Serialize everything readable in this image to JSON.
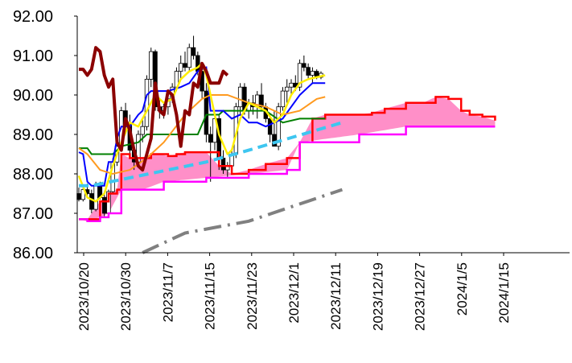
{
  "chart_data": {
    "type": "line",
    "title": "",
    "xlabel": "",
    "ylabel": "",
    "ylim": [
      86.0,
      92.0
    ],
    "y_ticks": [
      "86.00",
      "87.00",
      "88.00",
      "89.00",
      "90.00",
      "91.00",
      "92.00"
    ],
    "x_tick_labels": [
      "2023/10/20",
      "2023/10/30",
      "2023/11/7",
      "2023/11/15",
      "2023/11/23",
      "2023/12/1",
      "2023/12/11",
      "2023/12/19",
      "2023/12/27",
      "2024/1/5",
      "2024/1/15"
    ],
    "grid": false,
    "legend": "none",
    "colors": {
      "candle_up": "#ffffff",
      "candle_down": "#000000",
      "cloud_fill": "#ff8fc8",
      "span_a": "#ff0000",
      "span_b": "#ff00ff",
      "lagging": "#8b0000",
      "ma_short": "#ffee00",
      "ma_mid": "#ff9a1f",
      "tenkan": "#0000ff",
      "kijun": "#008000",
      "trend_upper": "#3ec6f0",
      "trend_lower": "#808080"
    },
    "candles": [
      [
        87.5,
        87.65,
        87.3,
        87.35
      ],
      [
        87.35,
        87.7,
        87.3,
        87.6
      ],
      [
        87.6,
        87.75,
        87.4,
        87.5
      ],
      [
        87.5,
        87.6,
        87.0,
        87.1
      ],
      [
        87.1,
        87.8,
        87.05,
        87.7
      ],
      [
        87.7,
        87.8,
        87.35,
        87.4
      ],
      [
        87.4,
        87.5,
        86.9,
        87.0
      ],
      [
        87.0,
        87.6,
        86.95,
        87.55
      ],
      [
        87.55,
        88.4,
        87.5,
        88.3
      ],
      [
        88.3,
        88.8,
        88.2,
        88.7
      ],
      [
        88.7,
        89.7,
        88.6,
        89.6
      ],
      [
        89.6,
        89.8,
        89.2,
        89.3
      ],
      [
        89.3,
        89.5,
        88.5,
        88.6
      ],
      [
        88.6,
        88.8,
        88.1,
        88.3
      ],
      [
        88.3,
        89.1,
        88.2,
        89.0
      ],
      [
        89.0,
        89.4,
        88.8,
        89.2
      ],
      [
        89.2,
        90.5,
        89.1,
        90.4
      ],
      [
        90.4,
        91.2,
        90.2,
        91.1
      ],
      [
        91.1,
        91.15,
        89.6,
        89.7
      ],
      [
        89.7,
        89.9,
        89.4,
        89.6
      ],
      [
        89.6,
        89.8,
        89.4,
        89.7
      ],
      [
        89.7,
        90.0,
        89.5,
        89.9
      ],
      [
        89.9,
        90.3,
        89.8,
        90.2
      ],
      [
        90.2,
        90.7,
        90.1,
        90.6
      ],
      [
        90.6,
        91.0,
        90.4,
        90.8
      ],
      [
        90.8,
        91.1,
        90.6,
        90.7
      ],
      [
        90.7,
        91.3,
        90.6,
        91.2
      ],
      [
        91.2,
        91.5,
        90.9,
        91.0
      ],
      [
        91.0,
        91.1,
        90.5,
        90.6
      ],
      [
        90.6,
        90.8,
        89.9,
        90.1
      ],
      [
        90.1,
        90.3,
        88.8,
        89.0
      ],
      [
        89.0,
        89.2,
        87.8,
        88.8
      ],
      [
        88.8,
        89.5,
        88.6,
        89.4
      ],
      [
        89.4,
        89.5,
        88.1,
        88.4
      ],
      [
        88.4,
        88.6,
        88.0,
        88.1
      ],
      [
        88.1,
        88.3,
        87.9,
        88.2
      ],
      [
        88.2,
        88.6,
        88.1,
        88.5
      ],
      [
        88.5,
        89.8,
        88.4,
        89.7
      ],
      [
        89.7,
        90.3,
        89.5,
        90.2
      ],
      [
        90.2,
        90.3,
        89.5,
        89.6
      ],
      [
        89.6,
        89.9,
        89.4,
        89.8
      ],
      [
        89.8,
        90.0,
        89.5,
        89.7
      ],
      [
        89.7,
        90.1,
        89.4,
        90.0
      ],
      [
        90.0,
        90.3,
        89.6,
        89.7
      ],
      [
        89.7,
        89.8,
        89.3,
        89.4
      ],
      [
        89.4,
        89.5,
        88.8,
        89.0
      ],
      [
        89.0,
        89.6,
        88.7,
        88.7
      ],
      [
        88.7,
        89.8,
        88.6,
        89.7
      ],
      [
        89.7,
        90.2,
        89.6,
        90.1
      ],
      [
        90.1,
        90.4,
        89.8,
        90.2
      ],
      [
        90.2,
        90.4,
        90.0,
        90.3
      ],
      [
        90.3,
        90.5,
        90.1,
        90.2
      ],
      [
        90.2,
        90.9,
        90.1,
        90.8
      ],
      [
        90.8,
        91.0,
        90.6,
        90.7
      ],
      [
        90.7,
        90.8,
        90.4,
        90.5
      ],
      [
        90.5,
        90.7,
        90.3,
        90.6
      ],
      [
        90.6,
        90.65,
        90.4,
        90.45
      ],
      [
        90.45,
        90.6,
        90.4,
        90.55
      ]
    ],
    "span_a": [
      [
        0,
        86.85
      ],
      [
        2,
        86.85
      ],
      [
        5,
        87.3
      ],
      [
        7,
        87.5
      ],
      [
        9,
        87.6
      ],
      [
        10,
        88.5
      ],
      [
        12,
        88.4
      ],
      [
        15,
        88.4
      ],
      [
        17,
        88.5
      ],
      [
        19,
        88.5
      ],
      [
        21,
        88.45
      ],
      [
        23,
        88.5
      ],
      [
        25,
        88.55
      ],
      [
        30,
        88.55
      ],
      [
        33,
        88.2
      ],
      [
        36,
        88.0
      ],
      [
        40,
        88.1
      ],
      [
        44,
        88.25
      ],
      [
        49,
        88.4
      ],
      [
        52,
        88.8
      ],
      [
        55,
        89.4
      ],
      [
        58,
        89.5
      ],
      [
        62,
        89.5
      ],
      [
        66,
        89.5
      ],
      [
        69,
        89.55
      ],
      [
        72,
        89.65
      ],
      [
        77,
        89.8
      ],
      [
        81,
        89.8
      ],
      [
        84,
        89.95
      ],
      [
        87,
        89.9
      ],
      [
        90,
        89.6
      ],
      [
        92,
        89.5
      ],
      [
        95,
        89.45
      ],
      [
        98,
        89.35
      ]
    ],
    "span_b": [
      [
        0,
        86.85
      ],
      [
        2,
        86.8
      ],
      [
        5,
        86.9
      ],
      [
        7,
        87.0
      ],
      [
        10,
        87.6
      ],
      [
        15,
        87.6
      ],
      [
        20,
        87.8
      ],
      [
        30,
        87.9
      ],
      [
        40,
        88.0
      ],
      [
        49,
        88.1
      ],
      [
        52,
        88.8
      ],
      [
        66,
        89.0
      ],
      [
        77,
        89.2
      ],
      [
        87,
        89.2
      ],
      [
        98,
        89.2
      ]
    ],
    "lagging": [
      [
        0,
        90.65
      ],
      [
        1,
        90.65
      ],
      [
        2,
        90.5
      ],
      [
        3,
        90.65
      ],
      [
        4,
        91.2
      ],
      [
        5,
        91.1
      ],
      [
        6,
        90.5
      ],
      [
        7,
        90.2
      ],
      [
        8,
        90.4
      ],
      [
        9,
        88.8
      ],
      [
        10,
        88.6
      ],
      [
        11,
        89.4
      ],
      [
        12,
        89.1
      ],
      [
        13,
        88.6
      ],
      [
        14,
        88.2
      ],
      [
        15,
        88.1
      ],
      [
        16,
        88.5
      ],
      [
        17,
        88.9
      ],
      [
        18,
        90.3
      ],
      [
        19,
        89.6
      ],
      [
        20,
        89.5
      ],
      [
        21,
        90.1
      ],
      [
        22,
        90.0
      ],
      [
        23,
        89.5
      ],
      [
        24,
        88.7
      ],
      [
        25,
        89.6
      ],
      [
        26,
        89.5
      ],
      [
        27,
        90.3
      ],
      [
        28,
        90.2
      ],
      [
        29,
        90.8
      ],
      [
        30,
        90.6
      ],
      [
        31,
        90.3
      ],
      [
        32,
        90.3
      ],
      [
        33,
        90.3
      ],
      [
        34,
        90.6
      ],
      [
        35,
        90.5
      ]
    ],
    "ma_short": [
      [
        0,
        87.95
      ],
      [
        2,
        87.4
      ],
      [
        4,
        87.3
      ],
      [
        6,
        87.5
      ],
      [
        8,
        88.2
      ],
      [
        10,
        88.8
      ],
      [
        12,
        89.3
      ],
      [
        14,
        89.2
      ],
      [
        16,
        89.6
      ],
      [
        18,
        90.0
      ],
      [
        20,
        89.8
      ],
      [
        22,
        89.9
      ],
      [
        24,
        90.4
      ],
      [
        26,
        90.6
      ],
      [
        28,
        90.7
      ],
      [
        29,
        90.8
      ],
      [
        30,
        90.5
      ],
      [
        31,
        90.0
      ],
      [
        32,
        89.5
      ],
      [
        33,
        89.0
      ],
      [
        35,
        88.5
      ],
      [
        36,
        88.6
      ],
      [
        38,
        89.4
      ],
      [
        40,
        89.8
      ],
      [
        42,
        89.7
      ],
      [
        44,
        89.6
      ],
      [
        46,
        89.3
      ],
      [
        48,
        89.5
      ],
      [
        50,
        90.0
      ],
      [
        52,
        90.3
      ],
      [
        54,
        90.4
      ],
      [
        56,
        90.45
      ],
      [
        58,
        90.5
      ]
    ],
    "ma_mid": [
      [
        0,
        88.65
      ],
      [
        2,
        88.5
      ],
      [
        5,
        88.1
      ],
      [
        8,
        88.0
      ],
      [
        12,
        88.1
      ],
      [
        16,
        88.4
      ],
      [
        20,
        88.8
      ],
      [
        25,
        89.5
      ],
      [
        29,
        89.9
      ],
      [
        31,
        90.0
      ],
      [
        35,
        90.0
      ],
      [
        40,
        89.8
      ],
      [
        44,
        89.7
      ],
      [
        48,
        89.5
      ],
      [
        52,
        89.6
      ],
      [
        56,
        89.9
      ],
      [
        58,
        89.95
      ]
    ],
    "tenkan": [
      [
        0,
        88.55
      ],
      [
        1,
        88.5
      ],
      [
        2,
        87.8
      ],
      [
        3,
        87.7
      ],
      [
        6,
        87.7
      ],
      [
        7,
        88.3
      ],
      [
        8,
        88.3
      ],
      [
        9,
        88.9
      ],
      [
        10,
        89.2
      ],
      [
        12,
        89.2
      ],
      [
        14,
        89.5
      ],
      [
        15,
        89.6
      ],
      [
        16,
        90.0
      ],
      [
        17,
        90.1
      ],
      [
        21,
        90.1
      ],
      [
        24,
        90.2
      ],
      [
        26,
        90.3
      ],
      [
        28,
        90.6
      ],
      [
        30,
        90.7
      ],
      [
        31,
        89.6
      ],
      [
        34,
        89.6
      ],
      [
        36,
        89.4
      ],
      [
        38,
        89.5
      ],
      [
        40,
        89.3
      ],
      [
        42,
        89.3
      ],
      [
        44,
        89.2
      ],
      [
        46,
        89.3
      ],
      [
        48,
        89.4
      ],
      [
        50,
        89.7
      ],
      [
        52,
        90.0
      ],
      [
        55,
        90.3
      ],
      [
        58,
        90.3
      ]
    ],
    "kijun": [
      [
        0,
        88.65
      ],
      [
        2,
        88.65
      ],
      [
        3,
        88.5
      ],
      [
        8,
        88.5
      ],
      [
        10,
        88.7
      ],
      [
        14,
        88.8
      ],
      [
        16,
        89.0
      ],
      [
        28,
        89.0
      ],
      [
        30,
        89.5
      ],
      [
        33,
        89.5
      ],
      [
        34,
        89.6
      ],
      [
        44,
        89.6
      ],
      [
        48,
        89.3
      ],
      [
        52,
        89.4
      ],
      [
        58,
        89.4
      ]
    ],
    "trend_upper": [
      [
        0,
        87.7
      ],
      [
        3,
        87.7
      ],
      [
        30,
        88.3
      ],
      [
        40,
        88.6
      ],
      [
        62,
        89.3
      ]
    ],
    "trend_lower": [
      [
        15,
        86.0
      ],
      [
        25,
        86.5
      ],
      [
        40,
        86.8
      ],
      [
        62,
        87.6
      ]
    ]
  }
}
